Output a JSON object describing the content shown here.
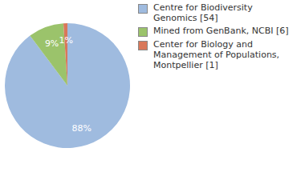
{
  "chart_data": {
    "type": "pie",
    "categories": [
      "Centre for Biodiversity Genomics [54]",
      "Mined from GenBank, NCBI [6]",
      "Center for Biology and Management of Populations, Montpellier [1]"
    ],
    "values": [
      88,
      9,
      1
    ],
    "value_labels": [
      "88%",
      "9%",
      "1%"
    ],
    "data_labels": true,
    "colors": [
      "#9fbbdf",
      "#9bc36b",
      "#d9785a"
    ]
  }
}
